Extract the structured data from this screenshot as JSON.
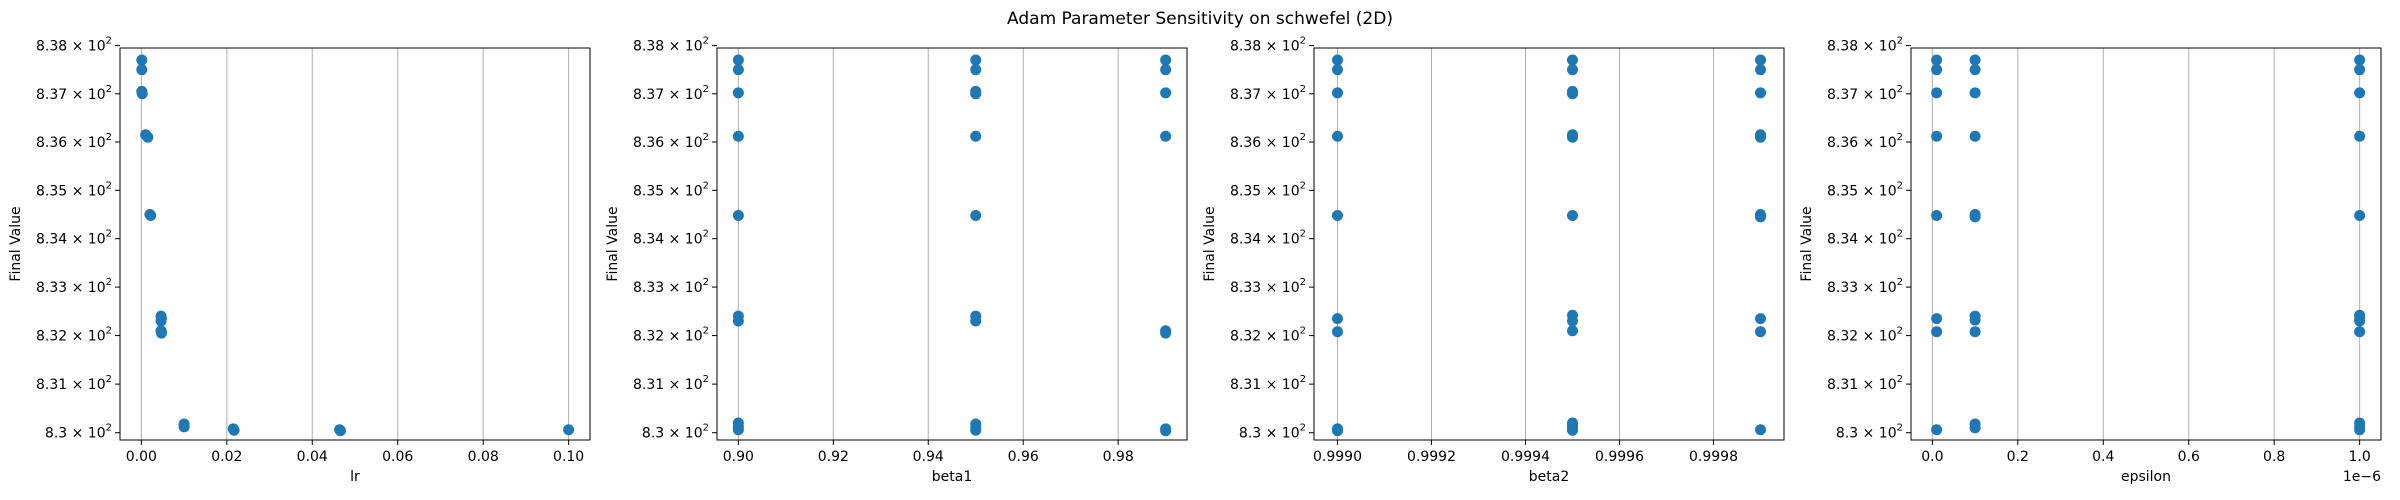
{
  "figure": {
    "title": "Adam Parameter Sensitivity on schwefel (2D)",
    "point_color": "#1f77b4"
  },
  "chart_data": [
    {
      "type": "scatter",
      "xlabel": "lr",
      "ylabel": "Final Value",
      "xlim": [
        -0.005,
        0.105
      ],
      "ylim": [
        829.85,
        837.95
      ],
      "yscale": "log",
      "grid": "x",
      "x_ticks": [
        0.0,
        0.02,
        0.04,
        0.06,
        0.08,
        0.1
      ],
      "x_tick_labels": [
        "0.00",
        "0.02",
        "0.04",
        "0.06",
        "0.08",
        "0.10"
      ],
      "x_offset_label": "",
      "y_ticks": [
        830,
        831,
        832,
        833,
        834,
        835,
        836,
        837,
        838
      ],
      "y_tick_base": [
        "8.3",
        "8.31",
        "8.32",
        "8.33",
        "8.34",
        "8.35",
        "8.36",
        "8.37",
        "8.38"
      ],
      "y_tick_exponent": "2",
      "points": [
        {
          "x": 0.0001,
          "y": 837.7
        },
        {
          "x": 0.0001,
          "y": 837.5
        },
        {
          "x": 0.0001,
          "y": 837.05
        },
        {
          "x": 0.0002,
          "y": 837.0
        },
        {
          "x": 0.001,
          "y": 836.15
        },
        {
          "x": 0.0015,
          "y": 836.1
        },
        {
          "x": 0.002,
          "y": 834.5
        },
        {
          "x": 0.0022,
          "y": 834.48
        },
        {
          "x": 0.0046,
          "y": 832.4
        },
        {
          "x": 0.0047,
          "y": 832.35
        },
        {
          "x": 0.0046,
          "y": 832.1
        },
        {
          "x": 0.0047,
          "y": 832.05
        },
        {
          "x": 0.0046,
          "y": 832.3
        },
        {
          "x": 0.0047,
          "y": 832.08
        },
        {
          "x": 0.01,
          "y": 830.18
        },
        {
          "x": 0.01,
          "y": 830.12
        },
        {
          "x": 0.01,
          "y": 830.15
        },
        {
          "x": 0.0215,
          "y": 830.08
        },
        {
          "x": 0.0217,
          "y": 830.05
        },
        {
          "x": 0.0464,
          "y": 830.06
        },
        {
          "x": 0.0466,
          "y": 830.04
        },
        {
          "x": 0.1,
          "y": 830.06
        }
      ]
    },
    {
      "type": "scatter",
      "xlabel": "beta1",
      "ylabel": "Final Value",
      "xlim": [
        0.8955,
        0.9945
      ],
      "ylim": [
        829.85,
        837.95
      ],
      "yscale": "log",
      "grid": "x",
      "x_ticks": [
        0.9,
        0.92,
        0.94,
        0.96,
        0.98
      ],
      "x_tick_labels": [
        "0.90",
        "0.92",
        "0.94",
        "0.96",
        "0.98"
      ],
      "x_offset_label": "",
      "y_ticks": [
        830,
        831,
        832,
        833,
        834,
        835,
        836,
        837,
        838
      ],
      "y_tick_base": [
        "8.3",
        "8.31",
        "8.32",
        "8.33",
        "8.34",
        "8.35",
        "8.36",
        "8.37",
        "8.38"
      ],
      "y_tick_exponent": "2",
      "points": [
        {
          "x": 0.9,
          "y": 837.7
        },
        {
          "x": 0.9,
          "y": 837.5
        },
        {
          "x": 0.9,
          "y": 837.02
        },
        {
          "x": 0.9,
          "y": 836.12
        },
        {
          "x": 0.9,
          "y": 834.48
        },
        {
          "x": 0.9,
          "y": 832.4
        },
        {
          "x": 0.9,
          "y": 832.3
        },
        {
          "x": 0.9,
          "y": 830.2
        },
        {
          "x": 0.9,
          "y": 830.12
        },
        {
          "x": 0.9,
          "y": 830.06
        },
        {
          "x": 0.95,
          "y": 837.7
        },
        {
          "x": 0.95,
          "y": 837.5
        },
        {
          "x": 0.95,
          "y": 837.05
        },
        {
          "x": 0.95,
          "y": 837.0
        },
        {
          "x": 0.95,
          "y": 836.12
        },
        {
          "x": 0.95,
          "y": 834.48
        },
        {
          "x": 0.95,
          "y": 832.4
        },
        {
          "x": 0.95,
          "y": 832.3
        },
        {
          "x": 0.95,
          "y": 830.18
        },
        {
          "x": 0.95,
          "y": 830.1
        },
        {
          "x": 0.95,
          "y": 830.05
        },
        {
          "x": 0.99,
          "y": 837.7
        },
        {
          "x": 0.99,
          "y": 837.5
        },
        {
          "x": 0.99,
          "y": 837.02
        },
        {
          "x": 0.99,
          "y": 836.12
        },
        {
          "x": 0.99,
          "y": 832.1
        },
        {
          "x": 0.99,
          "y": 832.05
        },
        {
          "x": 0.99,
          "y": 830.08
        },
        {
          "x": 0.99,
          "y": 830.04
        }
      ]
    },
    {
      "type": "scatter",
      "xlabel": "beta2",
      "ylabel": "Final Value",
      "xlim": [
        0.99895,
        0.99995
      ],
      "ylim": [
        829.85,
        837.95
      ],
      "yscale": "log",
      "grid": "x",
      "x_ticks": [
        0.999,
        0.9992,
        0.9994,
        0.9996,
        0.9998
      ],
      "x_tick_labels": [
        "0.9990",
        "0.9992",
        "0.9994",
        "0.9996",
        "0.9998"
      ],
      "x_offset_label": "",
      "y_ticks": [
        830,
        831,
        832,
        833,
        834,
        835,
        836,
        837,
        838
      ],
      "y_tick_base": [
        "8.3",
        "8.31",
        "8.32",
        "8.33",
        "8.34",
        "8.35",
        "8.36",
        "8.37",
        "8.38"
      ],
      "y_tick_exponent": "2",
      "points": [
        {
          "x": 0.999,
          "y": 837.7
        },
        {
          "x": 0.999,
          "y": 837.5
        },
        {
          "x": 0.999,
          "y": 837.02
        },
        {
          "x": 0.999,
          "y": 836.12
        },
        {
          "x": 0.999,
          "y": 834.48
        },
        {
          "x": 0.999,
          "y": 832.35
        },
        {
          "x": 0.999,
          "y": 832.08
        },
        {
          "x": 0.999,
          "y": 830.08
        },
        {
          "x": 0.999,
          "y": 830.04
        },
        {
          "x": 0.9995,
          "y": 837.7
        },
        {
          "x": 0.9995,
          "y": 837.5
        },
        {
          "x": 0.9995,
          "y": 837.05
        },
        {
          "x": 0.9995,
          "y": 837.0
        },
        {
          "x": 0.9995,
          "y": 836.15
        },
        {
          "x": 0.9995,
          "y": 836.1
        },
        {
          "x": 0.9995,
          "y": 834.48
        },
        {
          "x": 0.9995,
          "y": 832.42
        },
        {
          "x": 0.9995,
          "y": 832.3
        },
        {
          "x": 0.9995,
          "y": 832.1
        },
        {
          "x": 0.9995,
          "y": 830.2
        },
        {
          "x": 0.9995,
          "y": 830.15
        },
        {
          "x": 0.9995,
          "y": 830.1
        },
        {
          "x": 0.9995,
          "y": 830.05
        },
        {
          "x": 0.9999,
          "y": 837.7
        },
        {
          "x": 0.9999,
          "y": 837.5
        },
        {
          "x": 0.9999,
          "y": 837.02
        },
        {
          "x": 0.9999,
          "y": 836.15
        },
        {
          "x": 0.9999,
          "y": 836.1
        },
        {
          "x": 0.9999,
          "y": 834.5
        },
        {
          "x": 0.9999,
          "y": 834.45
        },
        {
          "x": 0.9999,
          "y": 832.35
        },
        {
          "x": 0.9999,
          "y": 832.08
        },
        {
          "x": 0.9999,
          "y": 830.06
        }
      ]
    },
    {
      "type": "scatter",
      "xlabel": "epsilon",
      "ylabel": "Final Value",
      "xlim": [
        -0.05,
        1.05
      ],
      "ylim": [
        829.85,
        837.95
      ],
      "yscale": "log",
      "grid": "x",
      "x_ticks": [
        0.0,
        0.2,
        0.4,
        0.6,
        0.8,
        1.0
      ],
      "x_tick_labels": [
        "0.0",
        "0.2",
        "0.4",
        "0.6",
        "0.8",
        "1.0"
      ],
      "x_offset_label": "1e−6",
      "y_ticks": [
        830,
        831,
        832,
        833,
        834,
        835,
        836,
        837,
        838
      ],
      "y_tick_base": [
        "8.3",
        "8.31",
        "8.32",
        "8.33",
        "8.34",
        "8.35",
        "8.36",
        "8.37",
        "8.38"
      ],
      "y_tick_exponent": "2",
      "points": [
        {
          "x": 0.01,
          "y": 837.7
        },
        {
          "x": 0.01,
          "y": 837.5
        },
        {
          "x": 0.01,
          "y": 837.02
        },
        {
          "x": 0.01,
          "y": 836.12
        },
        {
          "x": 0.01,
          "y": 834.48
        },
        {
          "x": 0.01,
          "y": 832.35
        },
        {
          "x": 0.01,
          "y": 832.08
        },
        {
          "x": 0.01,
          "y": 830.06
        },
        {
          "x": 0.1,
          "y": 837.7
        },
        {
          "x": 0.1,
          "y": 837.5
        },
        {
          "x": 0.1,
          "y": 837.02
        },
        {
          "x": 0.1,
          "y": 836.12
        },
        {
          "x": 0.1,
          "y": 834.5
        },
        {
          "x": 0.1,
          "y": 834.45
        },
        {
          "x": 0.1,
          "y": 832.4
        },
        {
          "x": 0.1,
          "y": 832.32
        },
        {
          "x": 0.1,
          "y": 832.08
        },
        {
          "x": 0.1,
          "y": 830.18
        },
        {
          "x": 0.1,
          "y": 830.1
        },
        {
          "x": 1.0,
          "y": 837.7
        },
        {
          "x": 1.0,
          "y": 837.5
        },
        {
          "x": 1.0,
          "y": 837.02
        },
        {
          "x": 1.0,
          "y": 836.12
        },
        {
          "x": 1.0,
          "y": 834.48
        },
        {
          "x": 1.0,
          "y": 832.42
        },
        {
          "x": 1.0,
          "y": 832.35
        },
        {
          "x": 1.0,
          "y": 832.3
        },
        {
          "x": 1.0,
          "y": 832.08
        },
        {
          "x": 1.0,
          "y": 830.2
        },
        {
          "x": 1.0,
          "y": 830.12
        },
        {
          "x": 1.0,
          "y": 830.06
        }
      ]
    }
  ]
}
